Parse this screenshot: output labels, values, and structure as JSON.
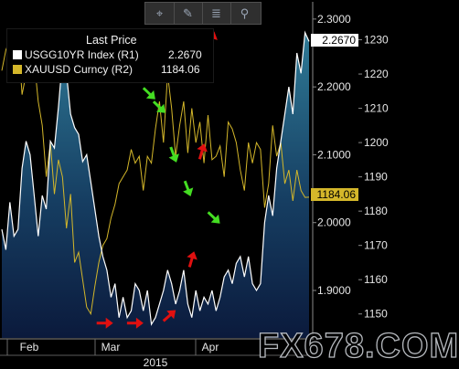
{
  "chart_data": {
    "type": "area",
    "title": "",
    "legend": {
      "header": "Last Price",
      "placement": "top-left",
      "entries": [
        {
          "name": "USGG10YR Index  (R1)",
          "last": "2.2670",
          "color": "#ffffff"
        },
        {
          "name": "XAUUSD Curncy  (R2)",
          "last": "1184.06",
          "color": "#d4b72a"
        }
      ]
    },
    "x_labels": [
      "Feb",
      "Mar",
      "Apr"
    ],
    "year_label": "2015",
    "axis_r1": {
      "ticks": [
        "2.3000",
        "2.2000",
        "2.1000",
        "2.0000",
        "1.9000"
      ],
      "values": [
        2.3,
        2.2,
        2.1,
        2.0,
        1.9
      ],
      "range": [
        1.83,
        2.32
      ]
    },
    "axis_r2": {
      "ticks": [
        "1230",
        "1220",
        "1210",
        "1200",
        "1190",
        "1180",
        "1170",
        "1160",
        "1150"
      ],
      "values": [
        1230,
        1220,
        1210,
        1200,
        1190,
        1180,
        1170,
        1160,
        1150
      ],
      "range": [
        1143,
        1240
      ]
    },
    "last_value_tags": {
      "r1": "2.2670",
      "r2": "1184.06"
    },
    "series": [
      {
        "name": "USGG10YR Index",
        "axis": "R1",
        "values": [
          1.99,
          1.96,
          2.03,
          1.98,
          1.99,
          2.08,
          2.12,
          2.1,
          2.04,
          1.98,
          2.04,
          2.02,
          2.12,
          2.11,
          2.17,
          2.24,
          2.22,
          2.16,
          2.14,
          2.13,
          2.09,
          2.1,
          2.06,
          2.02,
          1.98,
          1.95,
          1.93,
          1.89,
          1.91,
          1.86,
          1.89,
          1.86,
          1.87,
          1.91,
          1.9,
          1.87,
          1.9,
          1.85,
          1.86,
          1.88,
          1.9,
          1.93,
          1.91,
          1.88,
          1.9,
          1.93,
          1.88,
          1.86,
          1.9,
          1.87,
          1.89,
          1.88,
          1.9,
          1.87,
          1.89,
          1.92,
          1.93,
          1.91,
          1.94,
          1.95,
          1.92,
          1.95,
          1.91,
          1.9,
          1.91,
          2.0,
          2.04,
          2.01,
          2.08,
          2.12,
          2.16,
          2.2,
          2.16,
          2.25,
          2.22,
          2.28,
          2.267
        ]
      },
      {
        "name": "XAUUSD Curncy",
        "axis": "R2",
        "values": [
          1221,
          1227,
          1230,
          1228,
          1232,
          1214,
          1220,
          1232,
          1224,
          1212,
          1205,
          1190,
          1200,
          1185,
          1195,
          1190,
          1175,
          1185,
          1165,
          1168,
          1160,
          1152,
          1150,
          1158,
          1165,
          1170,
          1172,
          1178,
          1182,
          1188,
          1190,
          1192,
          1198,
          1194,
          1196,
          1186,
          1196,
          1194,
          1204,
          1212,
          1200,
          1220,
          1210,
          1196,
          1205,
          1212,
          1197,
          1210,
          1200,
          1206,
          1194,
          1208,
          1195,
          1196,
          1199,
          1190,
          1206,
          1204,
          1200,
          1192,
          1186,
          1200,
          1194,
          1200,
          1198,
          1181,
          1188,
          1205,
          1196,
          1200,
          1188,
          1192,
          1183,
          1192,
          1186,
          1184,
          1184.06
        ]
      }
    ],
    "annotations": [
      {
        "type": "arrow",
        "color": "#e01010",
        "direction": "right",
        "x_index": 25.5,
        "y": 1.852
      },
      {
        "type": "arrow",
        "color": "#e01010",
        "direction": "right",
        "x_index": 33,
        "y": 1.852
      },
      {
        "type": "arrow",
        "color": "#e01010",
        "direction": "up-right",
        "x_index": 41.5,
        "y": 1.863
      },
      {
        "type": "arrow",
        "color": "#e01010",
        "direction": "up",
        "x_index": 47,
        "y": 1.946
      },
      {
        "type": "arrow",
        "color": "#e01010",
        "direction": "up",
        "x_index": 49.5,
        "y": 2.105
      },
      {
        "type": "arrow",
        "color": "#e01010",
        "direction": "up",
        "x_index": 51,
        "y": 2.225
      },
      {
        "type": "arrow",
        "color": "#e01010",
        "direction": "up",
        "x_index": 52,
        "y": 2.27
      },
      {
        "type": "arrow",
        "color": "#44dd22",
        "direction": "down-right",
        "x_index": 36.5,
        "y": 2.19
      },
      {
        "type": "arrow",
        "color": "#44dd22",
        "direction": "down-right",
        "x_index": 39,
        "y": 2.17
      },
      {
        "type": "arrow",
        "color": "#44dd22",
        "direction": "down",
        "x_index": 42.5,
        "y": 2.1
      },
      {
        "type": "arrow",
        "color": "#44dd22",
        "direction": "down",
        "x_index": 46,
        "y": 2.05
      },
      {
        "type": "arrow",
        "color": "#44dd22",
        "direction": "down-right",
        "x_index": 52.5,
        "y": 2.007
      }
    ]
  },
  "toolbar": {
    "buttons": [
      {
        "icon": "crosshair-icon",
        "glyph": "⌖"
      },
      {
        "icon": "pencil-icon",
        "glyph": "✎"
      },
      {
        "icon": "list-icon",
        "glyph": "≣"
      },
      {
        "icon": "magnifier-icon",
        "glyph": "⚲"
      }
    ]
  },
  "watermark": "FX678.COM",
  "colors": {
    "background": "#000000",
    "area_top": "#2f7a96",
    "area_bottom": "#0b1a3c",
    "r1_line": "#ffffff",
    "r2_line": "#d4b72a",
    "red_arrow": "#e01010",
    "green_arrow": "#44dd22"
  }
}
